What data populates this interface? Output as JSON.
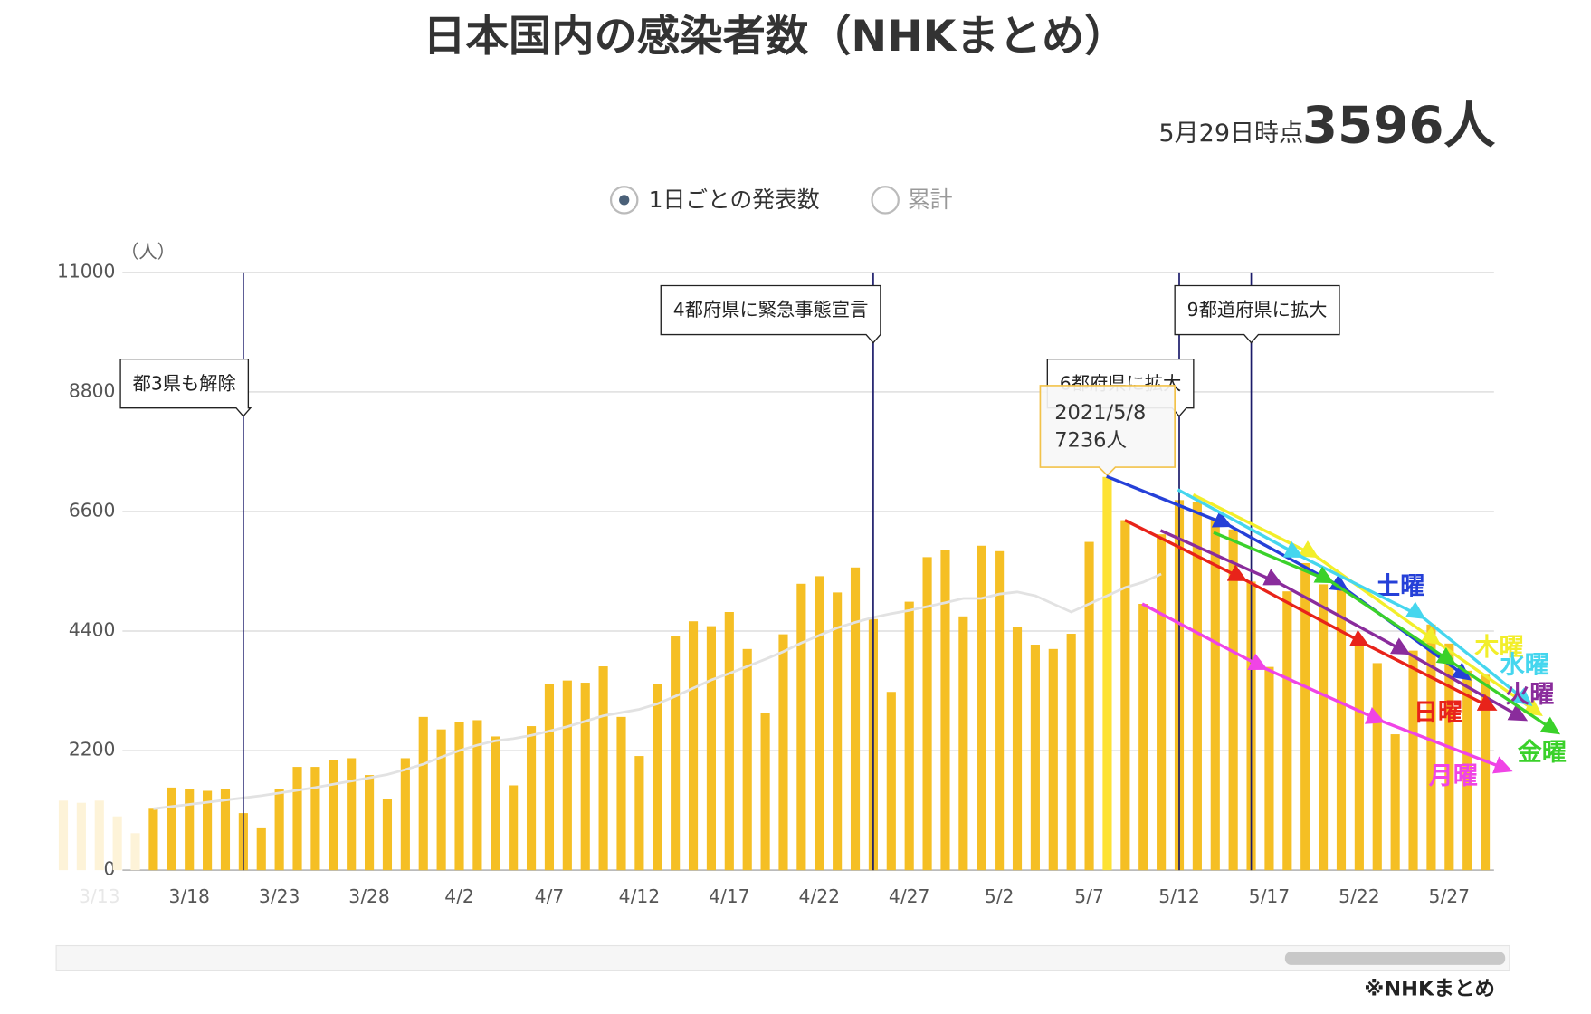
{
  "header": {
    "title": "日本国内の感染者数（NHKまとめ）",
    "as_of": "5月29日時点",
    "total": "3596人"
  },
  "toggle": {
    "options": [
      "1日ごとの発表数",
      "累計"
    ],
    "selected": 0
  },
  "footer": "※NHKまとめ",
  "chart_data": {
    "type": "bar",
    "y_unit": "（人）",
    "categories": [
      null,
      null,
      "3/13",
      null,
      null,
      null,
      null,
      "3/18",
      null,
      null,
      null,
      null,
      "3/23",
      null,
      null,
      null,
      null,
      "3/28",
      null,
      null,
      null,
      null,
      "4/2",
      null,
      null,
      null,
      null,
      "4/7",
      null,
      null,
      null,
      null,
      "4/12",
      null,
      null,
      null,
      null,
      "4/17",
      null,
      null,
      null,
      null,
      "4/22",
      null,
      null,
      null,
      null,
      "4/27",
      null,
      null,
      null,
      null,
      "5/2",
      null,
      null,
      null,
      null,
      "5/7",
      null,
      null,
      null,
      null,
      "5/12",
      null,
      null,
      null,
      null,
      "5/17",
      null,
      null,
      null,
      null,
      "5/22",
      null,
      null,
      null,
      null,
      "5/27",
      null,
      null
    ],
    "values": [
      1280,
      1240,
      1280,
      990,
      680,
      1130,
      1520,
      1500,
      1460,
      1500,
      1050,
      770,
      1500,
      1900,
      1900,
      2030,
      2060,
      1750,
      1310,
      2060,
      2820,
      2590,
      2720,
      2760,
      2460,
      1560,
      2650,
      3430,
      3490,
      3450,
      3750,
      2820,
      2100,
      3420,
      4300,
      4580,
      4490,
      4750,
      4070,
      2890,
      4340,
      5270,
      5410,
      5110,
      5570,
      4620,
      3280,
      4940,
      5760,
      5890,
      4670,
      5970,
      5870,
      4470,
      4150,
      4070,
      4350,
      6040,
      7236,
      6440,
      4900,
      6180,
      6810,
      6780,
      6480,
      6270,
      5310,
      3740,
      5130,
      5650,
      5260,
      5220,
      4190,
      3810,
      2500,
      4040,
      4520,
      4170,
      3670,
      3596
    ],
    "colors": [
      "#fdf3d8",
      "#fdf3d8",
      "#fdf3d8",
      "#fdf3d8",
      "#fdf3d8",
      "#f5bf24",
      "#f5bf24",
      "#f5bf24",
      "#f5bf24",
      "#f5bf24",
      "#f5bf24",
      "#f5bf24",
      "#f5bf24",
      "#f5bf24",
      "#f5bf24",
      "#f5bf24",
      "#f5bf24",
      "#f5bf24",
      "#f5bf24",
      "#f5bf24",
      "#f5bf24",
      "#f5bf24",
      "#f5bf24",
      "#f5bf24",
      "#f5bf24",
      "#f5bf24",
      "#f5bf24",
      "#f5bf24",
      "#f5bf24",
      "#f5bf24",
      "#f5bf24",
      "#f5bf24",
      "#f5bf24",
      "#f5bf24",
      "#f5bf24",
      "#f5bf24",
      "#f5bf24",
      "#f5bf24",
      "#f5bf24",
      "#f5bf24",
      "#f5bf24",
      "#f5bf24",
      "#f5bf24",
      "#f5bf24",
      "#f5bf24",
      "#f5bf24",
      "#f5bf24",
      "#f5bf24",
      "#f5bf24",
      "#f5bf24",
      "#f5bf24",
      "#f5bf24",
      "#f5bf24",
      "#f5bf24",
      "#f5bf24",
      "#f5bf24",
      "#f5bf24",
      "#f5bf24",
      "#fde234",
      "#f5bf24",
      "#f5bf24",
      "#f5bf24",
      "#f5bf24",
      "#f5bf24",
      "#f5bf24",
      "#f5bf24",
      "#f5bf24",
      "#f5bf24",
      "#f5bf24",
      "#f5bf24",
      "#f5bf24",
      "#f5bf24",
      "#f5bf24",
      "#f5bf24",
      "#f5bf24",
      "#f5bf24",
      "#f5bf24",
      "#f5bf24",
      "#f5bf24",
      "#f5bf24"
    ],
    "average": {
      "color": "#e2e2e2",
      "values": [
        null,
        null,
        null,
        null,
        null,
        1130,
        1170,
        1210,
        1250,
        1290,
        1330,
        1370,
        1420,
        1470,
        1520,
        1580,
        1640,
        1700,
        1760,
        1850,
        1950,
        2080,
        2200,
        2300,
        2380,
        2420,
        2480,
        2560,
        2640,
        2740,
        2840,
        2900,
        2960,
        3060,
        3200,
        3350,
        3500,
        3620,
        3750,
        3880,
        4020,
        4180,
        4320,
        4460,
        4560,
        4650,
        4720,
        4780,
        4850,
        4920,
        5000,
        5000,
        5080,
        5120,
        5050,
        4900,
        4750,
        4900,
        5050,
        5200,
        5300,
        5450,
        null,
        null,
        null,
        null,
        null,
        null,
        null,
        null,
        null,
        null,
        null,
        null,
        null,
        null,
        null,
        null,
        null,
        null
      ]
    },
    "ylim": [
      0,
      11000
    ],
    "yticks": [
      0,
      2200,
      4400,
      6600,
      8800,
      11000
    ],
    "grid": true,
    "events": [
      {
        "index": 10,
        "label": "都3県も解除"
      },
      {
        "index": 45,
        "label": "4都府県に緊急事態宣言"
      },
      {
        "index": 62,
        "label": "6都府県に拡大"
      },
      {
        "index": 66,
        "label": "9都道府県に拡大"
      }
    ],
    "tooltip": {
      "index": 58,
      "date": "2021/5/8",
      "label": "7236人"
    },
    "weekday_labels": [
      {
        "label": "土曜",
        "color": "#2540d8"
      },
      {
        "label": "木曜",
        "color": "#f2ee2a"
      },
      {
        "label": "水曜",
        "color": "#45d6ee"
      },
      {
        "label": "火曜",
        "color": "#8a2c9c"
      },
      {
        "label": "日曜",
        "color": "#e8231a"
      },
      {
        "label": "金曜",
        "color": "#3ad12a"
      },
      {
        "label": "月曜",
        "color": "#f044e6"
      }
    ]
  }
}
